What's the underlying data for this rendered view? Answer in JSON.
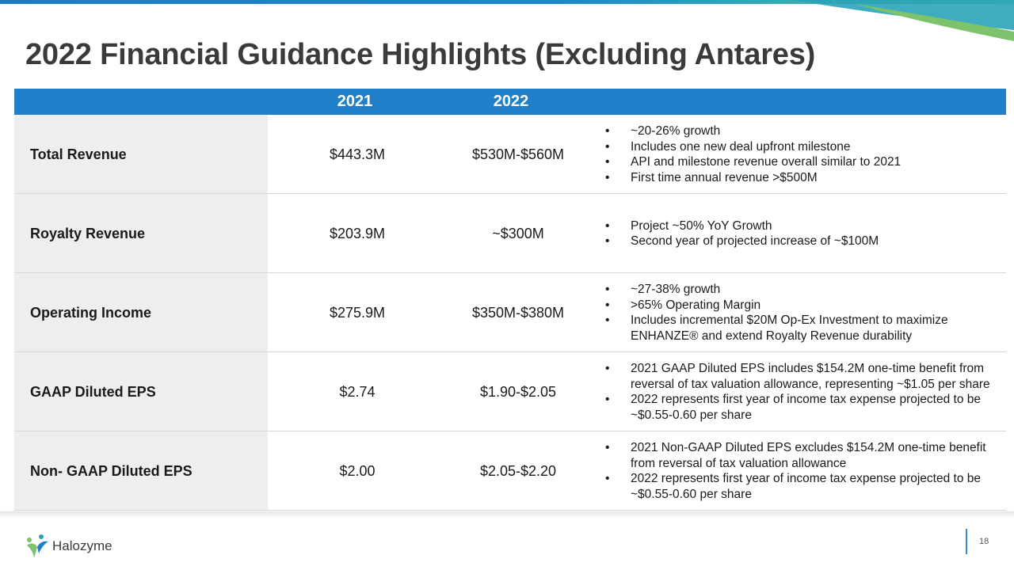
{
  "title": "2022 Financial Guidance Highlights (Excluding Antares)",
  "header": {
    "col_2021": "2021",
    "col_2022": "2022"
  },
  "rows": [
    {
      "label": "Total Revenue",
      "v2021": "$443.3M",
      "v2022": "$530M-$560M",
      "notes": [
        "~20-26% growth",
        "Includes one new deal upfront milestone",
        "API and milestone revenue overall  similar to 2021",
        "First time annual revenue >$500M"
      ]
    },
    {
      "label": "Royalty Revenue",
      "v2021": "$203.9M",
      "v2022": "~$300M",
      "notes": [
        "Project ~50% YoY Growth",
        "Second year of projected increase of ~$100M"
      ]
    },
    {
      "label": "Operating Income",
      "v2021": "$275.9M",
      "v2022": "$350M-$380M",
      "notes": [
        "~27-38% growth",
        ">65% Operating Margin",
        "Includes incremental $20M Op-Ex Investment to maximize ENHANZE® and extend Royalty Revenue durability"
      ]
    },
    {
      "label": "GAAP Diluted EPS",
      "v2021": "$2.74",
      "v2022": "$1.90-$2.05",
      "notes": [
        "2021 GAAP Diluted EPS includes $154.2M one-time benefit from reversal of tax valuation allowance, representing ~$1.05 per share",
        "2022 represents first year of income tax expense projected to be ~$0.55-0.60 per share"
      ]
    },
    {
      "label": "Non- GAAP Diluted EPS",
      "v2021": "$2.00",
      "v2022": "$2.05-$2.20",
      "notes": [
        "2021 Non-GAAP Diluted EPS excludes $154.2M one-time benefit from reversal of tax valuation allowance",
        "2022 represents first year of income tax expense projected to be ~$0.55-0.60 per share"
      ]
    }
  ],
  "footer": {
    "logo_text": "Halozyme",
    "page_number": "18"
  },
  "colors": {
    "header_blue": "#1f7fc9",
    "label_bg": "#eeeeee",
    "title": "#3a3a3a"
  }
}
